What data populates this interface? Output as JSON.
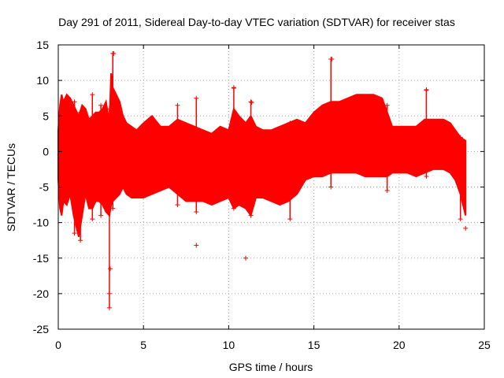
{
  "chart_data": {
    "type": "scatter",
    "title": "Day 291 of 2011, Sidereal Day-to-day VTEC variation (SDTVAR) for receiver stas",
    "xlabel": "GPS time / hours",
    "ylabel": "SDTVAR / TECUs",
    "xlim": [
      0,
      25
    ],
    "ylim": [
      -25,
      15
    ],
    "x_ticks": [
      0,
      5,
      10,
      15,
      20,
      25
    ],
    "y_ticks": [
      -25,
      -20,
      -15,
      -10,
      -5,
      0,
      5,
      10,
      15
    ],
    "x_tick_labels": [
      "0",
      "5",
      "10",
      "15",
      "20",
      "25"
    ],
    "y_tick_labels": [
      "-25",
      "-20",
      "-15",
      "-10",
      "-5",
      "0",
      "5",
      "10",
      "15"
    ],
    "grid": true,
    "marker": "+",
    "series": [
      {
        "name": "SDTVAR",
        "color": "#ff0000",
        "envelope_x": [
          0.0,
          0.1,
          0.2,
          0.3,
          0.5,
          0.7,
          0.9,
          1.0,
          1.2,
          1.4,
          1.6,
          1.8,
          2.0,
          2.2,
          2.4,
          2.6,
          2.8,
          3.0,
          3.1,
          3.2,
          3.4,
          3.6,
          3.8,
          4.0,
          4.3,
          4.6,
          5.0,
          5.5,
          6.0,
          6.5,
          7.0,
          7.5,
          8.0,
          8.5,
          9.0,
          9.5,
          10.0,
          10.3,
          10.6,
          11.0,
          11.3,
          11.6,
          12.0,
          12.5,
          13.0,
          13.5,
          14.0,
          14.5,
          15.0,
          15.5,
          16.0,
          16.5,
          17.0,
          17.5,
          18.0,
          18.5,
          19.0,
          19.3,
          19.6,
          20.0,
          20.5,
          21.0,
          21.5,
          22.0,
          22.3,
          22.6,
          23.0,
          23.3,
          23.6,
          23.9
        ],
        "envelope_upper": [
          3.0,
          6.5,
          8.0,
          7.0,
          8.0,
          7.5,
          6.5,
          6.0,
          5.0,
          6.5,
          6.0,
          4.5,
          5.0,
          5.5,
          5.5,
          6.0,
          7.0,
          4.0,
          11.0,
          9.0,
          8.0,
          7.0,
          5.0,
          4.0,
          3.5,
          3.0,
          4.0,
          5.0,
          3.5,
          3.5,
          4.5,
          4.0,
          3.5,
          3.0,
          2.5,
          3.5,
          3.0,
          6.0,
          5.0,
          4.0,
          5.0,
          3.5,
          3.0,
          3.0,
          3.5,
          4.0,
          4.5,
          4.0,
          5.5,
          6.5,
          7.0,
          7.0,
          7.5,
          8.0,
          8.0,
          8.0,
          7.5,
          5.5,
          3.5,
          3.5,
          3.5,
          3.5,
          4.5,
          4.5,
          4.5,
          4.5,
          4.0,
          3.0,
          2.0,
          1.5
        ],
        "envelope_lower": [
          -4.0,
          -8.0,
          -9.0,
          -7.0,
          -7.5,
          -6.0,
          -9.0,
          -10.0,
          -12.0,
          -9.0,
          -6.0,
          -8.0,
          -8.0,
          -7.0,
          -7.0,
          -7.5,
          -8.5,
          -9.0,
          -7.5,
          -7.0,
          -6.5,
          -6.0,
          -5.0,
          -6.0,
          -6.5,
          -6.5,
          -6.5,
          -6.0,
          -5.5,
          -5.0,
          -6.0,
          -7.0,
          -7.0,
          -7.0,
          -7.5,
          -7.0,
          -6.5,
          -8.0,
          -7.5,
          -8.0,
          -9.0,
          -6.5,
          -6.5,
          -7.0,
          -7.5,
          -7.0,
          -6.0,
          -4.0,
          -3.5,
          -3.5,
          -3.0,
          -3.0,
          -3.0,
          -3.0,
          -3.5,
          -3.5,
          -3.5,
          -3.5,
          -3.0,
          -3.0,
          -3.0,
          -3.5,
          -3.0,
          -2.5,
          -2.5,
          -2.5,
          -3.0,
          -4.0,
          -6.0,
          -9.0
        ],
        "spikes": [
          {
            "x": 0.95,
            "y0": -11.5,
            "y1": 7.0
          },
          {
            "x": 1.3,
            "y0": -12.5,
            "y1": 5.5
          },
          {
            "x": 2.0,
            "y0": -9.5,
            "y1": 8.0
          },
          {
            "x": 2.5,
            "y0": -9.0,
            "y1": 6.5
          },
          {
            "x": 3.0,
            "y0": -22.0,
            "y1": 6.0
          },
          {
            "x": 3.2,
            "y0": -8.0,
            "y1": 13.8
          },
          {
            "x": 7.0,
            "y0": -7.5,
            "y1": 6.5
          },
          {
            "x": 8.1,
            "y0": -8.5,
            "y1": 7.5
          },
          {
            "x": 10.3,
            "y0": -8.0,
            "y1": 9.0
          },
          {
            "x": 11.3,
            "y0": -9.0,
            "y1": 7.0
          },
          {
            "x": 13.6,
            "y0": -9.5,
            "y1": 4.0
          },
          {
            "x": 16.0,
            "y0": -5.0,
            "y1": 13.0
          },
          {
            "x": 19.3,
            "y0": -5.5,
            "y1": 6.5
          },
          {
            "x": 21.6,
            "y0": -3.5,
            "y1": 8.7
          },
          {
            "x": 23.6,
            "y0": -9.5,
            "y1": 2.0
          }
        ],
        "outliers": [
          {
            "x": 3.0,
            "y": -20.0
          },
          {
            "x": 3.05,
            "y": -16.5
          },
          {
            "x": 8.1,
            "y": -13.2
          },
          {
            "x": 11.0,
            "y": -15.0
          },
          {
            "x": 3.25,
            "y": 13.8
          },
          {
            "x": 16.05,
            "y": 13.0
          },
          {
            "x": 10.3,
            "y": 8.9
          },
          {
            "x": 11.35,
            "y": 6.9
          },
          {
            "x": 23.9,
            "y": -10.8
          },
          {
            "x": 21.6,
            "y": 8.6
          }
        ]
      }
    ]
  }
}
